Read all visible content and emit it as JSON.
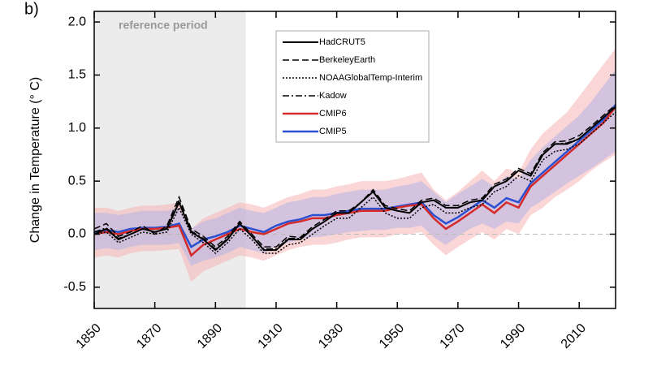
{
  "chart_data": {
    "type": "line",
    "panel_label": "b)",
    "ylabel": "Change in Temperature (° C)",
    "annotation": "reference period",
    "reference_span": [
      1850,
      1900
    ],
    "x": [
      1850,
      1854,
      1858,
      1862,
      1866,
      1870,
      1874,
      1878,
      1882,
      1886,
      1890,
      1894,
      1898,
      1902,
      1906,
      1910,
      1914,
      1918,
      1922,
      1926,
      1930,
      1934,
      1938,
      1942,
      1946,
      1950,
      1954,
      1958,
      1962,
      1966,
      1970,
      1974,
      1978,
      1982,
      1986,
      1990,
      1994,
      1998,
      2002,
      2006,
      2010,
      2014,
      2018,
      2022
    ],
    "xlim": [
      1850,
      2022
    ],
    "xticks": [
      1850,
      1870,
      1890,
      1910,
      1930,
      1950,
      1970,
      1990,
      2010
    ],
    "ylim": [
      -0.7,
      2.1
    ],
    "yticks": [
      {
        "value": -0.5,
        "label": "-0.5"
      },
      {
        "value": 0,
        "label": "0.0"
      },
      {
        "value": 0.5,
        "label": "0.5"
      },
      {
        "value": 1,
        "label": "1.0"
      },
      {
        "value": 1.5,
        "label": "1.5"
      },
      {
        "value": 2,
        "label": "2.0"
      }
    ],
    "bands": [
      {
        "color": "#f8b4b4",
        "lower": [
          -0.22,
          -0.2,
          -0.22,
          -0.18,
          -0.16,
          -0.16,
          -0.15,
          -0.14,
          -0.45,
          -0.35,
          -0.3,
          -0.25,
          -0.2,
          -0.22,
          -0.25,
          -0.2,
          -0.15,
          -0.12,
          -0.1,
          -0.1,
          -0.08,
          -0.05,
          -0.03,
          -0.03,
          -0.03,
          0.0,
          0.0,
          0.02,
          -0.1,
          -0.2,
          -0.12,
          -0.05,
          0.02,
          -0.05,
          0.05,
          0.0,
          0.18,
          0.25,
          0.35,
          0.42,
          0.5,
          0.6,
          0.68,
          0.75
        ],
        "upper": [
          0.25,
          0.25,
          0.22,
          0.25,
          0.27,
          0.27,
          0.28,
          0.3,
          0.05,
          0.15,
          0.2,
          0.25,
          0.3,
          0.28,
          0.25,
          0.3,
          0.35,
          0.38,
          0.42,
          0.42,
          0.45,
          0.47,
          0.5,
          0.5,
          0.5,
          0.52,
          0.55,
          0.58,
          0.42,
          0.32,
          0.4,
          0.5,
          0.6,
          0.5,
          0.62,
          0.58,
          0.8,
          0.95,
          1.05,
          1.15,
          1.3,
          1.45,
          1.6,
          1.75
        ]
      },
      {
        "color": "#b4b4e6",
        "lower": [
          -0.15,
          -0.13,
          -0.15,
          -0.12,
          -0.1,
          -0.1,
          -0.1,
          -0.08,
          -0.3,
          -0.25,
          -0.22,
          -0.18,
          -0.12,
          -0.15,
          -0.18,
          -0.12,
          -0.08,
          -0.05,
          -0.03,
          -0.02,
          0.0,
          0.02,
          0.03,
          0.04,
          0.04,
          0.06,
          0.06,
          0.08,
          -0.03,
          -0.1,
          -0.02,
          0.05,
          0.1,
          0.05,
          0.12,
          0.1,
          0.25,
          0.32,
          0.4,
          0.48,
          0.55,
          0.62,
          0.7,
          0.78
        ],
        "upper": [
          0.2,
          0.2,
          0.18,
          0.2,
          0.22,
          0.22,
          0.22,
          0.25,
          0.05,
          0.12,
          0.15,
          0.2,
          0.25,
          0.22,
          0.2,
          0.25,
          0.3,
          0.32,
          0.35,
          0.35,
          0.38,
          0.4,
          0.42,
          0.42,
          0.42,
          0.45,
          0.47,
          0.5,
          0.4,
          0.3,
          0.38,
          0.45,
          0.52,
          0.45,
          0.55,
          0.52,
          0.7,
          0.82,
          0.92,
          1.02,
          1.12,
          1.25,
          1.4,
          1.55
        ]
      }
    ],
    "series": [
      {
        "name": "HadCRUT5",
        "color": "#000000",
        "dash": "solid",
        "width": 2,
        "values": [
          0.0,
          0.05,
          -0.05,
          0.0,
          0.05,
          0.02,
          0.05,
          0.3,
          0.02,
          -0.05,
          -0.15,
          -0.05,
          0.1,
          -0.02,
          -0.15,
          -0.15,
          -0.05,
          -0.05,
          0.05,
          0.12,
          0.2,
          0.2,
          0.3,
          0.4,
          0.25,
          0.22,
          0.2,
          0.3,
          0.32,
          0.25,
          0.25,
          0.3,
          0.32,
          0.45,
          0.5,
          0.6,
          0.55,
          0.75,
          0.85,
          0.85,
          0.9,
          1.0,
          1.1,
          1.2
        ]
      },
      {
        "name": "BerkeleyEarth",
        "color": "#000000",
        "dash": "dashed",
        "width": 1.5,
        "values": [
          0.05,
          0.1,
          -0.02,
          0.02,
          0.08,
          0.0,
          0.08,
          0.35,
          0.05,
          -0.02,
          -0.12,
          -0.02,
          0.12,
          0.0,
          -0.12,
          -0.12,
          -0.02,
          -0.03,
          0.07,
          0.14,
          0.22,
          0.22,
          0.3,
          0.42,
          0.27,
          0.24,
          0.22,
          0.32,
          0.34,
          0.27,
          0.27,
          0.32,
          0.34,
          0.47,
          0.52,
          0.62,
          0.57,
          0.77,
          0.87,
          0.88,
          0.93,
          1.02,
          1.12,
          1.22
        ]
      },
      {
        "name": "NOAAGlobalTemp-Interim",
        "color": "#000000",
        "dash": "dotted",
        "width": 1.5,
        "values": [
          0.0,
          0.02,
          -0.08,
          -0.03,
          0.02,
          0.0,
          0.02,
          0.25,
          0.0,
          -0.08,
          -0.18,
          -0.08,
          0.05,
          -0.05,
          -0.18,
          -0.18,
          -0.1,
          -0.08,
          0.0,
          0.08,
          0.15,
          0.15,
          0.25,
          0.35,
          0.2,
          0.15,
          0.15,
          0.25,
          0.28,
          0.2,
          0.2,
          0.25,
          0.28,
          0.4,
          0.45,
          0.55,
          0.5,
          0.7,
          0.78,
          0.8,
          0.85,
          0.95,
          1.05,
          1.15
        ]
      },
      {
        "name": "Kadow",
        "color": "#000000",
        "dash": "dashdot",
        "width": 1.5,
        "values": [
          0.02,
          0.06,
          -0.04,
          0.0,
          0.05,
          0.02,
          0.06,
          0.32,
          0.03,
          -0.04,
          -0.14,
          -0.04,
          0.1,
          -0.02,
          -0.14,
          -0.14,
          -0.04,
          -0.04,
          0.05,
          0.12,
          0.2,
          0.2,
          0.3,
          0.4,
          0.25,
          0.22,
          0.2,
          0.3,
          0.32,
          0.25,
          0.25,
          0.3,
          0.32,
          0.45,
          0.5,
          0.6,
          0.55,
          0.75,
          0.85,
          0.86,
          0.9,
          1.0,
          1.1,
          1.2
        ]
      },
      {
        "name": "CMIP6",
        "color": "#d42a2a",
        "dash": "solid",
        "width": 2.5,
        "values": [
          0.0,
          0.02,
          0.0,
          0.03,
          0.05,
          0.05,
          0.06,
          0.08,
          -0.2,
          -0.1,
          -0.05,
          0.0,
          0.05,
          0.02,
          0.0,
          0.05,
          0.1,
          0.12,
          0.15,
          0.15,
          0.18,
          0.2,
          0.22,
          0.22,
          0.22,
          0.25,
          0.27,
          0.28,
          0.15,
          0.05,
          0.12,
          0.2,
          0.28,
          0.2,
          0.3,
          0.25,
          0.45,
          0.55,
          0.65,
          0.75,
          0.85,
          0.95,
          1.05,
          1.2
        ]
      },
      {
        "name": "CMIP5",
        "color": "#2a4fd0",
        "dash": "solid",
        "width": 2.5,
        "values": [
          0.02,
          0.04,
          0.02,
          0.05,
          0.06,
          0.06,
          0.07,
          0.1,
          -0.12,
          -0.05,
          -0.02,
          0.02,
          0.08,
          0.05,
          0.02,
          0.08,
          0.12,
          0.14,
          0.18,
          0.18,
          0.2,
          0.22,
          0.24,
          0.24,
          0.24,
          0.26,
          0.28,
          0.3,
          0.18,
          0.1,
          0.16,
          0.24,
          0.32,
          0.25,
          0.34,
          0.3,
          0.48,
          0.58,
          0.68,
          0.78,
          0.88,
          0.98,
          1.08,
          1.22
        ]
      }
    ]
  }
}
